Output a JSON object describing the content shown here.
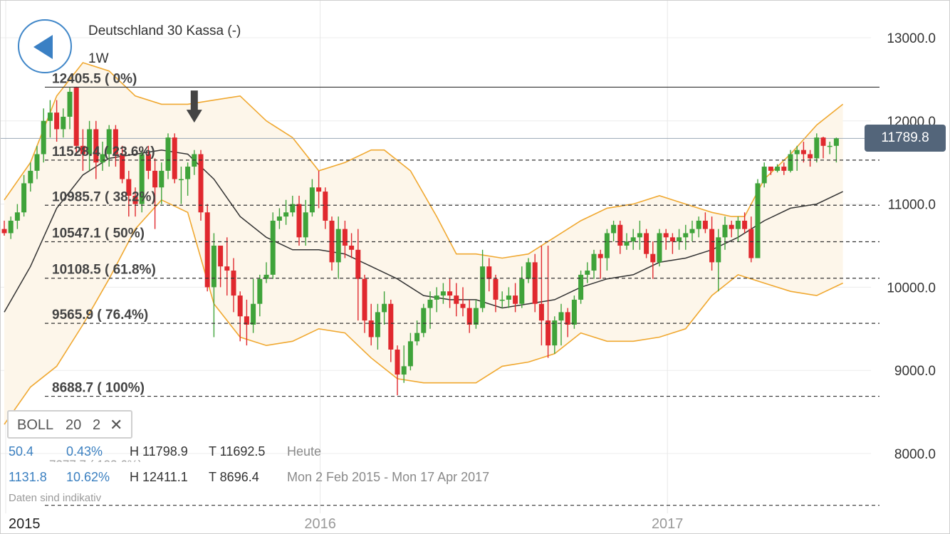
{
  "header": {
    "title": "Deutschland 30 Kassa (-)",
    "interval": "1W"
  },
  "indicator": {
    "name": "BOLL",
    "period": "20",
    "stddev": "2",
    "close_icon": "close-x-icon"
  },
  "stats": {
    "today": {
      "change": "50.4",
      "percent": "0.43%",
      "high": "H 11798.9",
      "low": "T 11692.5",
      "label": "Heute"
    },
    "range": {
      "change": "1131.8",
      "percent": "10.62%",
      "high": "H 12411.1",
      "low": "T 8696.4",
      "label": "Mon 2 Feb 2015 - Mon 17 Apr 2017"
    },
    "hidden_fib_label": "7377.7 ( 123.6%)"
  },
  "disclaimer": "Daten sind indikativ",
  "current_price": "11789.8",
  "colors": {
    "up": "#3fa33a",
    "down": "#e0282e",
    "bands": "#f0a830",
    "band_fill": "#fdf6ea",
    "middle": "#333333",
    "accent": "#3a80c4",
    "badge": "#53657a"
  },
  "chart_data": {
    "type": "candlestick",
    "title": "Deutschland 30 Kassa (-)",
    "ylim": [
      7700,
      13250
    ],
    "y_ticks": [
      "13000.0",
      "12000.0",
      "11000.0",
      "10000.0",
      "9000.0",
      "8000.0"
    ],
    "y_tick_values": [
      13000,
      12000,
      11000,
      10000,
      9000,
      8000
    ],
    "x_ticks": [
      {
        "label": "2015",
        "t": 0
      },
      {
        "label": "2016",
        "t": 48
      },
      {
        "label": "2017",
        "t": 101
      }
    ],
    "fibonacci": [
      {
        "label": "12405.5 ( 0%)",
        "value": 12405.5
      },
      {
        "label": "11528.4 ( 23.6%)",
        "value": 11528.4
      },
      {
        "label": "10985.7 ( 38.2%)",
        "value": 10985.7
      },
      {
        "label": "10547.1 ( 50%)",
        "value": 10547.1
      },
      {
        "label": "10108.5 ( 61.8%)",
        "value": 10108.5
      },
      {
        "label": "9565.9 ( 76.4%)",
        "value": 9565.9
      },
      {
        "label": "8688.7 ( 100%)",
        "value": 8688.7
      },
      {
        "label": "7377.7 ( 123.6%)",
        "value": 7377.7
      }
    ],
    "last_price": 11789.8,
    "candles": [
      [
        0,
        10700,
        10650,
        10800,
        10620
      ],
      [
        1,
        10650,
        10800,
        10850,
        10580
      ],
      [
        2,
        10800,
        10900,
        11000,
        10700
      ],
      [
        3,
        10900,
        11250,
        11350,
        10850
      ],
      [
        4,
        11250,
        11400,
        11500,
        11150
      ],
      [
        5,
        11400,
        11600,
        11700,
        11300
      ],
      [
        6,
        11600,
        12000,
        12150,
        11500
      ],
      [
        7,
        12000,
        12100,
        12250,
        11800
      ],
      [
        8,
        12100,
        11900,
        12250,
        11750
      ],
      [
        9,
        11900,
        12050,
        12150,
        11800
      ],
      [
        10,
        12050,
        12350,
        12400,
        11900
      ],
      [
        11,
        12400,
        11700,
        12411,
        11600
      ],
      [
        12,
        11700,
        11600,
        11900,
        11400
      ],
      [
        13,
        11600,
        11900,
        12000,
        11400
      ],
      [
        14,
        11900,
        11500,
        12000,
        11300
      ],
      [
        15,
        11500,
        11600,
        11750,
        11400
      ],
      [
        16,
        11600,
        11900,
        11950,
        11450
      ],
      [
        17,
        11900,
        11600,
        11950,
        11450
      ],
      [
        18,
        11600,
        11300,
        11700,
        11250
      ],
      [
        19,
        11300,
        11100,
        11400,
        10850
      ],
      [
        20,
        11100,
        11000,
        11200,
        10850
      ],
      [
        21,
        11000,
        11600,
        11650,
        10900
      ],
      [
        22,
        11600,
        11400,
        11700,
        11300
      ],
      [
        23,
        11400,
        11200,
        11550,
        10700
      ],
      [
        24,
        11200,
        11400,
        11500,
        11000
      ],
      [
        25,
        11400,
        11800,
        11850,
        11300
      ],
      [
        26,
        11800,
        11300,
        11850,
        11250
      ],
      [
        27,
        11300,
        11300,
        11450,
        11000
      ],
      [
        28,
        11300,
        11450,
        11500,
        11100
      ],
      [
        29,
        11450,
        11600,
        11650,
        11350
      ],
      [
        30,
        11600,
        10900,
        11650,
        10800
      ],
      [
        31,
        10900,
        10000,
        11000,
        9950
      ],
      [
        32,
        10000,
        10500,
        10650,
        9400
      ],
      [
        33,
        10500,
        10250,
        10500,
        10000
      ],
      [
        34,
        10250,
        10200,
        10600,
        9900
      ],
      [
        35,
        10200,
        9900,
        10350,
        9700
      ],
      [
        36,
        9900,
        9650,
        9950,
        9350
      ],
      [
        37,
        9650,
        9550,
        9850,
        9300
      ],
      [
        38,
        9550,
        9800,
        10100,
        9450
      ],
      [
        39,
        9800,
        10100,
        10150,
        9650
      ],
      [
        40,
        10100,
        10150,
        10300,
        10050
      ],
      [
        41,
        10150,
        10800,
        10900,
        10100
      ],
      [
        42,
        10800,
        10850,
        10950,
        10700
      ],
      [
        43,
        10850,
        10900,
        11050,
        10750
      ],
      [
        44,
        10900,
        11000,
        11100,
        10850
      ],
      [
        45,
        11000,
        10600,
        11100,
        10500
      ],
      [
        46,
        10600,
        10900,
        11050,
        10500
      ],
      [
        47,
        10900,
        11200,
        11300,
        10850
      ],
      [
        48,
        11200,
        11150,
        11400,
        10950
      ],
      [
        49,
        11150,
        10800,
        11200,
        10700
      ],
      [
        50,
        10800,
        10300,
        10850,
        10200
      ],
      [
        51,
        10300,
        10700,
        10850,
        10100
      ],
      [
        52,
        10700,
        10500,
        10800,
        10350
      ],
      [
        53,
        10500,
        10450,
        10650,
        10350
      ],
      [
        54,
        10450,
        10100,
        10700,
        9600
      ],
      [
        55,
        10100,
        9600,
        10150,
        9450
      ],
      [
        56,
        9600,
        9400,
        9800,
        9300
      ],
      [
        57,
        9400,
        9700,
        9800,
        9250
      ],
      [
        58,
        9700,
        9800,
        9950,
        9550
      ],
      [
        59,
        9800,
        9250,
        9850,
        9100
      ],
      [
        60,
        9250,
        8950,
        9300,
        8700
      ],
      [
        61,
        8950,
        9050,
        9300,
        8850
      ],
      [
        62,
        9050,
        9350,
        9450,
        9000
      ],
      [
        63,
        9350,
        9450,
        9600,
        9300
      ],
      [
        64,
        9450,
        9750,
        9800,
        9400
      ],
      [
        65,
        9750,
        9850,
        9950,
        9500
      ],
      [
        66,
        9850,
        9900,
        10000,
        9700
      ],
      [
        67,
        9900,
        9950,
        10050,
        9800
      ],
      [
        68,
        9950,
        9900,
        10100,
        9750
      ],
      [
        69,
        9900,
        9800,
        10050,
        9650
      ],
      [
        70,
        9800,
        9750,
        10000,
        9650
      ],
      [
        71,
        9750,
        9550,
        9850,
        9450
      ],
      [
        72,
        9550,
        9750,
        9850,
        9500
      ],
      [
        73,
        9750,
        10250,
        10450,
        9700
      ],
      [
        74,
        10250,
        10100,
        10350,
        9950
      ],
      [
        75,
        10100,
        9850,
        10150,
        9700
      ],
      [
        76,
        9850,
        9850,
        9950,
        9750
      ],
      [
        77,
        9850,
        9900,
        10000,
        9750
      ],
      [
        78,
        9900,
        9800,
        10050,
        9700
      ],
      [
        79,
        9800,
        10100,
        10250,
        9750
      ],
      [
        80,
        10100,
        10300,
        10350,
        10050
      ],
      [
        81,
        10300,
        9800,
        10400,
        9700
      ],
      [
        82,
        9800,
        9600,
        10500,
        9300
      ],
      [
        83,
        9600,
        9300,
        10500,
        9150
      ],
      [
        84,
        9300,
        9600,
        9650,
        9200
      ],
      [
        85,
        9600,
        9700,
        9800,
        9300
      ],
      [
        86,
        9700,
        9550,
        9750,
        9400
      ],
      [
        87,
        9550,
        9850,
        9900,
        9500
      ],
      [
        88,
        9850,
        10150,
        10200,
        9800
      ],
      [
        89,
        10150,
        10200,
        10300,
        10050
      ],
      [
        90,
        10200,
        10400,
        10450,
        10100
      ],
      [
        91,
        10400,
        10350,
        10450,
        10100
      ],
      [
        92,
        10350,
        10650,
        10700,
        10200
      ],
      [
        93,
        10650,
        10750,
        10800,
        10550
      ],
      [
        94,
        10750,
        10500,
        10800,
        10400
      ],
      [
        95,
        10500,
        10550,
        10650,
        10450
      ],
      [
        96,
        10550,
        10600,
        10700,
        10450
      ],
      [
        97,
        10600,
        10650,
        10800,
        10450
      ],
      [
        98,
        10650,
        10400,
        10700,
        10350
      ],
      [
        99,
        10400,
        10300,
        10550,
        10100
      ],
      [
        100,
        10300,
        10650,
        10700,
        10250
      ],
      [
        101,
        10650,
        10600,
        10700,
        10450
      ],
      [
        102,
        10600,
        10550,
        10650,
        10400
      ],
      [
        103,
        10550,
        10600,
        10700,
        10450
      ],
      [
        104,
        10600,
        10650,
        10750,
        10450
      ],
      [
        105,
        10650,
        10700,
        10800,
        10550
      ],
      [
        106,
        10700,
        10800,
        10850,
        10600
      ],
      [
        107,
        10800,
        10700,
        10900,
        10650
      ],
      [
        108,
        10700,
        10300,
        10850,
        10200
      ],
      [
        109,
        10300,
        10600,
        10700,
        9950
      ],
      [
        110,
        10600,
        10750,
        10850,
        10450
      ],
      [
        111,
        10750,
        10700,
        10800,
        10600
      ],
      [
        112,
        10700,
        10800,
        10850,
        10550
      ],
      [
        113,
        10800,
        10700,
        10900,
        10650
      ],
      [
        114,
        10700,
        10350,
        10850,
        10300
      ],
      [
        115,
        10350,
        11250,
        11300,
        10350
      ],
      [
        116,
        11250,
        11450,
        11500,
        11200
      ],
      [
        117,
        11450,
        11400,
        11450,
        11350
      ],
      [
        118,
        11400,
        11450,
        11480,
        11380
      ],
      [
        119,
        11450,
        11400,
        11500,
        11350
      ],
      [
        120,
        11400,
        11600,
        11650,
        11380
      ],
      [
        121,
        11600,
        11650,
        11700,
        11400
      ],
      [
        122,
        11650,
        11600,
        11750,
        11500
      ],
      [
        123,
        11600,
        11550,
        11650,
        11450
      ],
      [
        124,
        11550,
        11800,
        11850,
        11500
      ],
      [
        125,
        11800,
        11700,
        11810,
        11550
      ],
      [
        126,
        11700,
        11700,
        11750,
        11600
      ],
      [
        127,
        11700,
        11790,
        11800,
        11500
      ]
    ],
    "bollinger": {
      "upper": [
        [
          0,
          11050
        ],
        [
          4,
          11500
        ],
        [
          8,
          12300
        ],
        [
          12,
          12700
        ],
        [
          16,
          12600
        ],
        [
          20,
          12300
        ],
        [
          24,
          12200
        ],
        [
          28,
          12200
        ],
        [
          32,
          12250
        ],
        [
          36,
          12300
        ],
        [
          40,
          12000
        ],
        [
          44,
          11800
        ],
        [
          48,
          11400
        ],
        [
          52,
          11500
        ],
        [
          56,
          11650
        ],
        [
          58,
          11650
        ],
        [
          62,
          11400
        ],
        [
          66,
          10850
        ],
        [
          69,
          10400
        ],
        [
          72,
          10400
        ],
        [
          76,
          10350
        ],
        [
          80,
          10400
        ],
        [
          84,
          10600
        ],
        [
          88,
          10800
        ],
        [
          92,
          10950
        ],
        [
          96,
          11000
        ],
        [
          100,
          11100
        ],
        [
          104,
          11000
        ],
        [
          108,
          10900
        ],
        [
          111,
          10850
        ],
        [
          113,
          10850
        ],
        [
          116,
          11300
        ],
        [
          120,
          11600
        ],
        [
          124,
          11950
        ],
        [
          128,
          12200
        ]
      ],
      "middle": [
        [
          0,
          9700
        ],
        [
          4,
          10250
        ],
        [
          8,
          10950
        ],
        [
          12,
          11350
        ],
        [
          16,
          11550
        ],
        [
          20,
          11600
        ],
        [
          24,
          11650
        ],
        [
          28,
          11600
        ],
        [
          32,
          11300
        ],
        [
          36,
          10850
        ],
        [
          40,
          10600
        ],
        [
          44,
          10450
        ],
        [
          48,
          10450
        ],
        [
          52,
          10400
        ],
        [
          56,
          10250
        ],
        [
          60,
          10100
        ],
        [
          64,
          9900
        ],
        [
          68,
          9850
        ],
        [
          72,
          9850
        ],
        [
          76,
          9750
        ],
        [
          80,
          9800
        ],
        [
          84,
          9850
        ],
        [
          88,
          10000
        ],
        [
          92,
          10100
        ],
        [
          96,
          10150
        ],
        [
          100,
          10300
        ],
        [
          104,
          10350
        ],
        [
          108,
          10450
        ],
        [
          112,
          10600
        ],
        [
          116,
          10800
        ],
        [
          120,
          10950
        ],
        [
          124,
          11000
        ],
        [
          128,
          11150
        ]
      ],
      "lower": [
        [
          0,
          8350
        ],
        [
          4,
          8800
        ],
        [
          8,
          9050
        ],
        [
          12,
          9550
        ],
        [
          16,
          10100
        ],
        [
          20,
          10700
        ],
        [
          24,
          11050
        ],
        [
          28,
          10900
        ],
        [
          32,
          9800
        ],
        [
          36,
          9400
        ],
        [
          40,
          9300
        ],
        [
          44,
          9350
        ],
        [
          48,
          9500
        ],
        [
          52,
          9450
        ],
        [
          56,
          9150
        ],
        [
          60,
          8900
        ],
        [
          64,
          8850
        ],
        [
          68,
          8850
        ],
        [
          72,
          8850
        ],
        [
          76,
          9050
        ],
        [
          80,
          9100
        ],
        [
          84,
          9200
        ],
        [
          88,
          9450
        ],
        [
          92,
          9350
        ],
        [
          96,
          9350
        ],
        [
          100,
          9400
        ],
        [
          104,
          9500
        ],
        [
          108,
          9900
        ],
        [
          112,
          10150
        ],
        [
          116,
          10050
        ],
        [
          120,
          9950
        ],
        [
          124,
          9900
        ],
        [
          128,
          10050
        ]
      ]
    }
  }
}
